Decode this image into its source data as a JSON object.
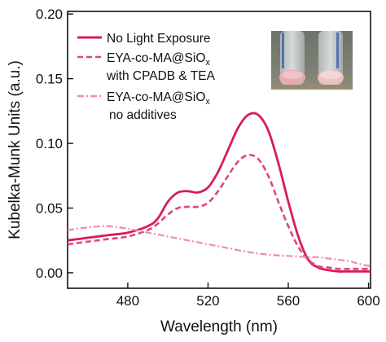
{
  "chart_data": {
    "type": "line",
    "xlabel": "Wavelength (nm)",
    "ylabel": "Kubelka-Munk Units (a.u.)",
    "xlim": [
      450,
      601
    ],
    "ylim": [
      -0.012,
      0.202
    ],
    "x_ticks": [
      480,
      520,
      560,
      600
    ],
    "y_ticks": [
      0.0,
      0.05,
      0.1,
      0.15,
      0.2
    ],
    "x_tick_labels": [
      "480",
      "520",
      "560",
      "600"
    ],
    "y_tick_labels": [
      "0.00",
      "0.05",
      "0.10",
      "0.15",
      "0.20"
    ],
    "legend_position": "top-left",
    "series": [
      {
        "name": "No Light Exposure",
        "style": "solid",
        "color": "#d81b60",
        "x": [
          450,
          460,
          470,
          480,
          490,
          495,
          500,
          505,
          510,
          515,
          520,
          525,
          530,
          535,
          540,
          545,
          550,
          555,
          560,
          565,
          570,
          575,
          580,
          585,
          590,
          595,
          601
        ],
        "y": [
          0.025,
          0.027,
          0.029,
          0.031,
          0.036,
          0.042,
          0.055,
          0.062,
          0.063,
          0.062,
          0.066,
          0.078,
          0.095,
          0.112,
          0.122,
          0.122,
          0.11,
          0.085,
          0.055,
          0.028,
          0.01,
          0.004,
          0.002,
          0.001,
          0.001,
          0.001,
          0.001
        ]
      },
      {
        "name": "EYA-co-MA@SiOx with CPADB & TEA",
        "style": "dashed",
        "color": "#e0457f",
        "x": [
          450,
          460,
          470,
          480,
          490,
          495,
          500,
          505,
          510,
          515,
          520,
          525,
          530,
          535,
          540,
          545,
          550,
          555,
          560,
          565,
          570,
          575,
          580,
          585,
          590,
          595,
          601
        ],
        "y": [
          0.022,
          0.024,
          0.026,
          0.028,
          0.033,
          0.038,
          0.045,
          0.05,
          0.051,
          0.051,
          0.054,
          0.063,
          0.075,
          0.086,
          0.091,
          0.088,
          0.075,
          0.055,
          0.036,
          0.02,
          0.01,
          0.005,
          0.004,
          0.003,
          0.003,
          0.003,
          0.003
        ]
      },
      {
        "name": "EYA-co-MA@SiOx no additives",
        "style": "dash-dot",
        "color": "#f08bb0",
        "x": [
          450,
          460,
          470,
          480,
          490,
          500,
          510,
          520,
          530,
          540,
          550,
          560,
          570,
          575,
          580,
          590,
          595,
          601
        ],
        "y": [
          0.033,
          0.035,
          0.036,
          0.034,
          0.031,
          0.028,
          0.025,
          0.022,
          0.019,
          0.016,
          0.014,
          0.013,
          0.012,
          0.012,
          0.011,
          0.009,
          0.007,
          0.005
        ]
      }
    ],
    "legend": [
      {
        "line1": "No Light Exposure"
      },
      {
        "line1_main": "EYA-co-MA@SiO",
        "line1_sub": "x",
        "line2": "with CPADB & TEA"
      },
      {
        "line1_main": "EYA-co-MA@SiO",
        "line1_sub": "x",
        "line2": "no additives"
      }
    ]
  },
  "inset_photo": {
    "description_icon": "sample-vials-photo"
  }
}
